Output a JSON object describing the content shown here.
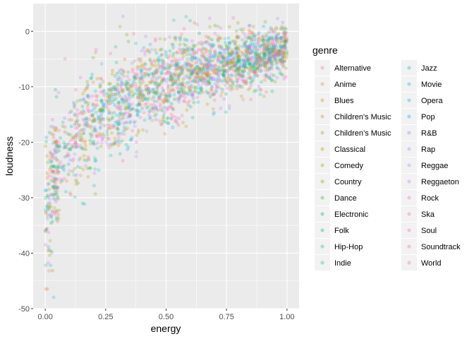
{
  "chart_data": {
    "type": "scatter",
    "xlabel": "energy",
    "ylabel": "loudness",
    "xlim": [
      -0.05,
      1.05
    ],
    "ylim": [
      -50,
      5
    ],
    "x_ticks": [
      0.0,
      0.25,
      0.5,
      0.75,
      1.0
    ],
    "x_tick_labels": [
      "0.00",
      "0.25",
      "0.50",
      "0.75",
      "1.00"
    ],
    "y_ticks": [
      -50,
      -40,
      -30,
      -20,
      -10,
      0
    ],
    "y_tick_labels": [
      "-50",
      "-40",
      "-30",
      "-20",
      "-10",
      "0"
    ],
    "grid": true,
    "legend": {
      "title": "genre",
      "placement": "right",
      "columns": 2
    },
    "point_alpha": 0.25,
    "series": [
      {
        "name": "Alternative",
        "color": "#F8766D"
      },
      {
        "name": "Anime",
        "color": "#EE8044"
      },
      {
        "name": "Blues",
        "color": "#E18A00"
      },
      {
        "name": "Children's Music",
        "color": "#D19300"
      },
      {
        "name": "Children’s Music",
        "color": "#BE9C00"
      },
      {
        "name": "Classical",
        "color": "#A8A400"
      },
      {
        "name": "Comedy",
        "color": "#8EAB00"
      },
      {
        "name": "Country",
        "color": "#6BB100"
      },
      {
        "name": "Dance",
        "color": "#31B425"
      },
      {
        "name": "Electronic",
        "color": "#00B84E"
      },
      {
        "name": "Folk",
        "color": "#00BC7D"
      },
      {
        "name": "Hip-Hop",
        "color": "#00BFA0"
      },
      {
        "name": "Indie",
        "color": "#00C0B7"
      },
      {
        "name": "Jazz",
        "color": "#00C0CF"
      },
      {
        "name": "Movie",
        "color": "#00BCE1"
      },
      {
        "name": "Opera",
        "color": "#00B6F1"
      },
      {
        "name": "Pop",
        "color": "#00ACFC"
      },
      {
        "name": "R&B",
        "color": "#619CFF"
      },
      {
        "name": "Rap",
        "color": "#9890FF"
      },
      {
        "name": "Reggae",
        "color": "#C07FFF"
      },
      {
        "name": "Reggaeton",
        "color": "#DE71F9"
      },
      {
        "name": "Rock",
        "color": "#F066EA"
      },
      {
        "name": "Ska",
        "color": "#FB61D7"
      },
      {
        "name": "Soul",
        "color": "#FF62BC"
      },
      {
        "name": "Soundtrack",
        "color": "#FF65AC"
      },
      {
        "name": "World",
        "color": "#FF6C91"
      }
    ],
    "trend": {
      "description_points": [
        {
          "energy": 0.0,
          "loudness": -30
        },
        {
          "energy": 0.05,
          "loudness": -24
        },
        {
          "energy": 0.1,
          "loudness": -20
        },
        {
          "energy": 0.25,
          "loudness": -14
        },
        {
          "energy": 0.5,
          "loudness": -9
        },
        {
          "energy": 0.75,
          "loudness": -6
        },
        {
          "energy": 1.0,
          "loudness": -3
        }
      ]
    }
  }
}
